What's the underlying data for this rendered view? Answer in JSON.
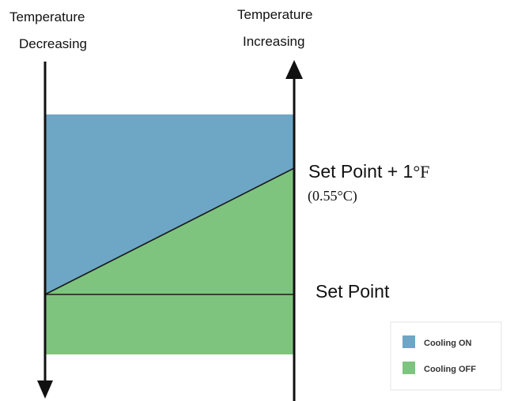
{
  "left_axis": {
    "line1": "Temperature",
    "line2": "Decreasing"
  },
  "right_axis": {
    "line1": "Temperature",
    "line2": "Increasing"
  },
  "labels": {
    "setpoint_plus_main": "Set Point + 1",
    "setpoint_plus_unit": "°F",
    "setpoint_plus_sub": "(0.55°C)",
    "setpoint": "Set Point"
  },
  "legend": {
    "items": [
      {
        "label": "Cooling ON",
        "color": "#6ea6c6"
      },
      {
        "label": "Cooling OFF",
        "color": "#7ec47e"
      }
    ]
  },
  "colors": {
    "cooling_on": "#6ea6c6",
    "cooling_off": "#7ec47e",
    "line": "#111111",
    "axis": "#111111"
  }
}
